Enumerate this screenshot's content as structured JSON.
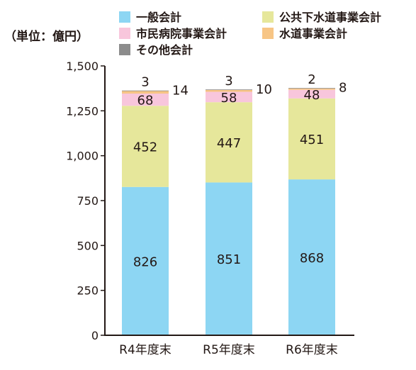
{
  "chart_data": {
    "type": "bar",
    "stacked": true,
    "unit_label": "（単位：億円）",
    "categories": [
      "R4年度末",
      "R5年度末",
      "R6年度末"
    ],
    "ylim": [
      0,
      1500
    ],
    "yticks": [
      "0",
      "250",
      "500",
      "750",
      "1,000",
      "1,250",
      "1,500"
    ],
    "ytick_values": [
      0,
      250,
      500,
      750,
      1000,
      1250,
      1500
    ],
    "grid": false,
    "legend_position": "top",
    "series": [
      {
        "name": "一般会計",
        "color": "#8dd6f3",
        "values": [
          826,
          851,
          868
        ],
        "label_position": "inside"
      },
      {
        "name": "公共下水道事業会計",
        "color": "#e6e79b",
        "values": [
          452,
          447,
          451
        ],
        "label_position": "inside"
      },
      {
        "name": "市民病院事業会計",
        "color": "#f8c6dc",
        "values": [
          68,
          58,
          48
        ],
        "label_position": "inside"
      },
      {
        "name": "水道事業会計",
        "color": "#f7c585",
        "values": [
          14,
          10,
          8
        ],
        "label_position": "right"
      },
      {
        "name": "その他会計",
        "color": "#8c8c8c",
        "values": [
          3,
          3,
          2
        ],
        "label_position": "above"
      }
    ]
  }
}
